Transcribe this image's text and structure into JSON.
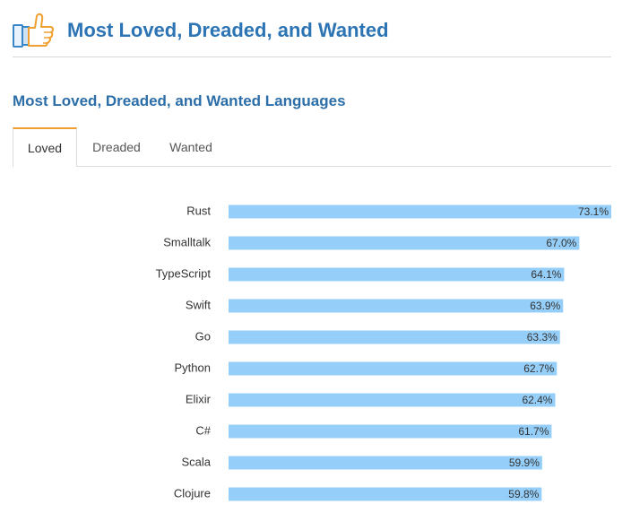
{
  "header": {
    "title": "Most Loved, Dreaded, and Wanted",
    "icon": "thumbs-up-icon"
  },
  "section": {
    "title": "Most Loved, Dreaded, and Wanted Languages"
  },
  "tabs": [
    {
      "label": "Loved",
      "active": true
    },
    {
      "label": "Dreaded",
      "active": false
    },
    {
      "label": "Wanted",
      "active": false
    }
  ],
  "colors": {
    "bar": "#95cff9",
    "title": "#2c74b3",
    "tab_accent": "#f0a030"
  },
  "chart_data": {
    "type": "bar",
    "orientation": "horizontal",
    "categories": [
      "Rust",
      "Smalltalk",
      "TypeScript",
      "Swift",
      "Go",
      "Python",
      "Elixir",
      "C#",
      "Scala",
      "Clojure"
    ],
    "values": [
      73.1,
      67.0,
      64.1,
      63.9,
      63.3,
      62.7,
      62.4,
      61.7,
      59.9,
      59.8
    ],
    "value_labels": [
      "73.1%",
      "67.0%",
      "64.1%",
      "63.9%",
      "63.3%",
      "62.7%",
      "62.4%",
      "61.7%",
      "59.9%",
      "59.8%"
    ],
    "xlim": [
      0,
      73.1
    ],
    "grid": false,
    "title": "",
    "xlabel": "",
    "ylabel": ""
  }
}
